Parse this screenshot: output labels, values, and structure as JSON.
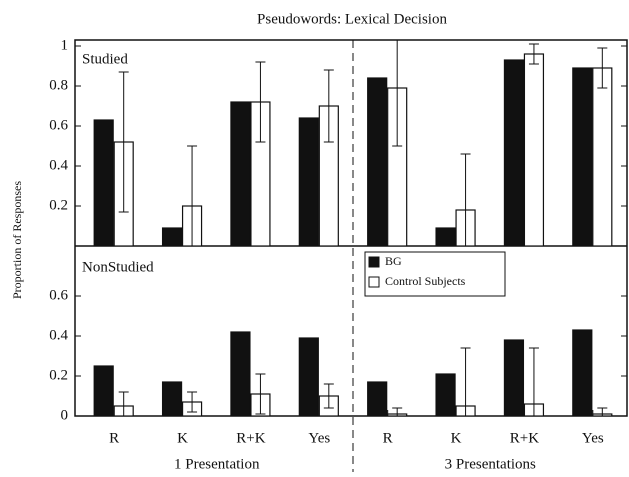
{
  "chart_data": [
    {
      "type": "bar",
      "title": "Pseudowords:  Lexical Decision",
      "ylabel": "Proportion of Responses",
      "panel_label": "Studied",
      "ylim": [
        0,
        1.03
      ],
      "yticks": [
        0.2,
        0.4,
        0.6,
        0.8,
        1
      ],
      "series": [
        {
          "color": "#111111",
          "values": [
            0.63,
            0.09,
            0.72,
            0.64,
            0.84,
            0.09,
            0.93,
            0.89
          ]
        },
        {
          "color": "#ffffff",
          "values": [
            0.52,
            0.2,
            0.72,
            0.7,
            0.79,
            0.18,
            0.96,
            0.89
          ],
          "errors": [
            0.35,
            0.3,
            0.2,
            0.18,
            0.29,
            0.28,
            0.05,
            0.1
          ]
        }
      ]
    },
    {
      "type": "bar",
      "panel_label": "NonStudied",
      "categories": [
        "R",
        "K",
        "R+K",
        "Yes",
        "R",
        "K",
        "R+K",
        "Yes"
      ],
      "groups": [
        "1 Presentation",
        "3 Presentations"
      ],
      "ylim": [
        0,
        0.85
      ],
      "yticks": [
        0,
        0.2,
        0.4,
        0.6
      ],
      "legend": "upper right",
      "series": [
        {
          "name": "BG",
          "color": "#111111",
          "values": [
            0.25,
            0.17,
            0.42,
            0.39,
            0.17,
            0.21,
            0.38,
            0.43
          ]
        },
        {
          "name": "Control Subjects",
          "color": "#ffffff",
          "values": [
            0.05,
            0.07,
            0.11,
            0.1,
            0.01,
            0.05,
            0.06,
            0.01
          ],
          "errors": [
            0.07,
            0.05,
            0.1,
            0.06,
            0.03,
            0.29,
            0.28,
            0.03
          ]
        }
      ]
    }
  ]
}
